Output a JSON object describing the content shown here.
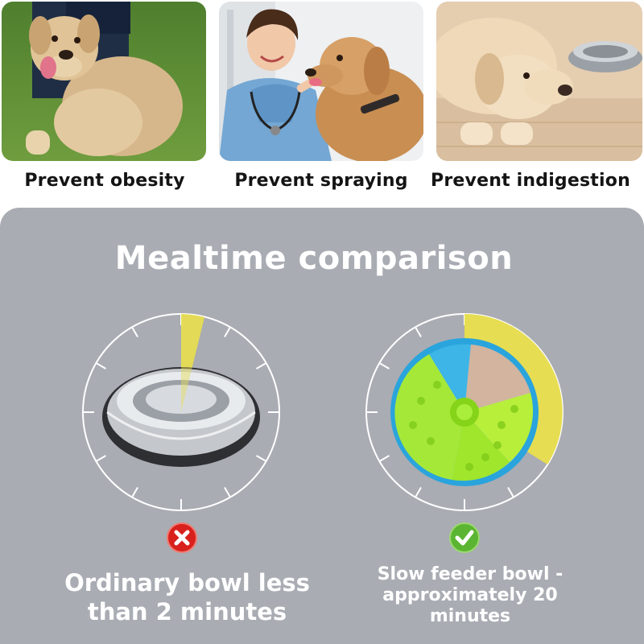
{
  "top_panels": [
    {
      "caption": "Prevent obesity"
    },
    {
      "caption": "Prevent spraying"
    },
    {
      "caption": "Prevent indigestion"
    }
  ],
  "comparison": {
    "title": "Mealtime comparison",
    "ordinary_bowl": {
      "result": "fail",
      "caption": "Ordinary bowl less than 2 minutes",
      "status_icon": "cross-icon"
    },
    "slow_feeder_bowl": {
      "result": "pass",
      "caption": "Slow feeder bowl - approximately 20 minutes",
      "status_icon": "check-icon"
    }
  },
  "colors": {
    "panel_background": "#a9acb3",
    "clock_highlight": "#e6dd52",
    "fail_red": "#d8201d",
    "pass_green": "#5cb532"
  }
}
